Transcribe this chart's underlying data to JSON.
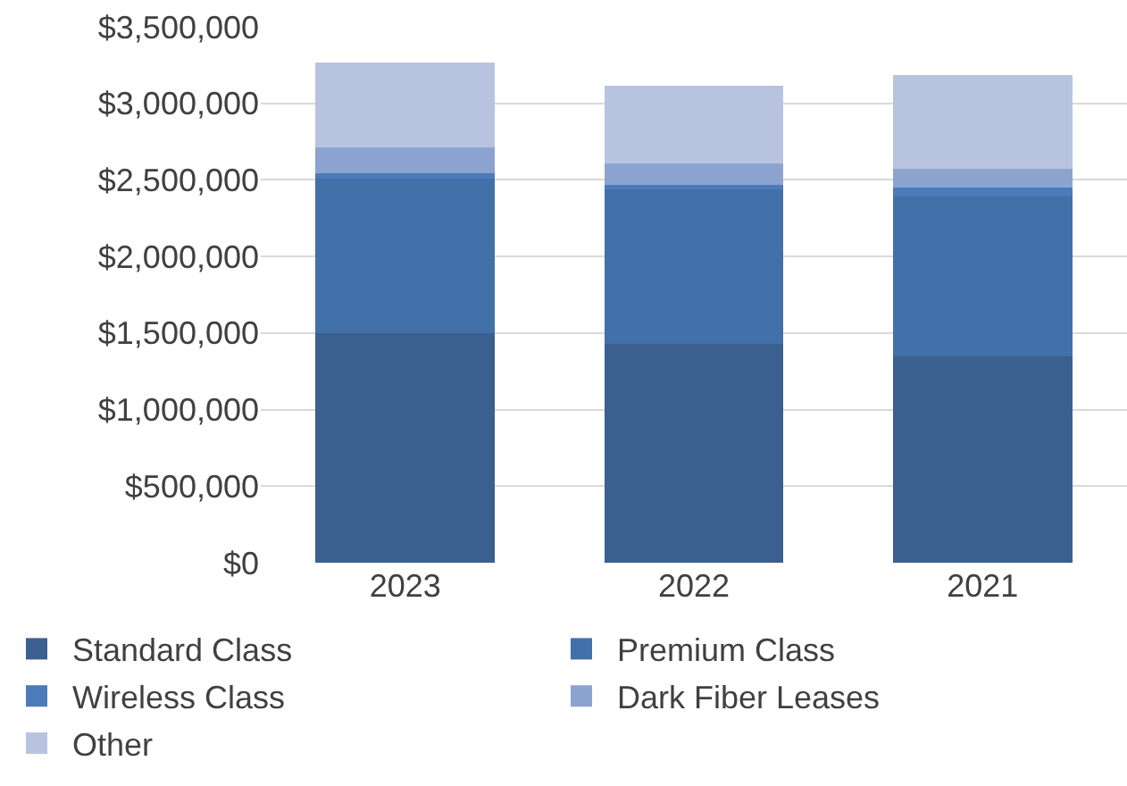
{
  "chart_data": {
    "type": "bar",
    "stacked": true,
    "categories": [
      "2023",
      "2022",
      "2021"
    ],
    "series": [
      {
        "name": "Standard Class",
        "color": "#3b5f8f",
        "values": [
          1500000,
          1430000,
          1350000
        ]
      },
      {
        "name": "Premium Class",
        "color": "#4270a8",
        "values": [
          1010000,
          1010000,
          1040000
        ]
      },
      {
        "name": "Wireless Class",
        "color": "#4a7bba",
        "values": [
          35000,
          30000,
          60000
        ]
      },
      {
        "name": "Dark Fiber Leases",
        "color": "#8da3cf",
        "values": [
          170000,
          135000,
          125000
        ]
      },
      {
        "name": "Other",
        "color": "#b8c4df",
        "values": [
          550000,
          510000,
          610000
        ]
      }
    ],
    "ylim": [
      0,
      3500000
    ],
    "yticks": [
      {
        "value": 0,
        "label": "$0"
      },
      {
        "value": 500000,
        "label": "$500,000"
      },
      {
        "value": 1000000,
        "label": "$1,000,000"
      },
      {
        "value": 1500000,
        "label": "$1,500,000"
      },
      {
        "value": 2000000,
        "label": "$2,000,000"
      },
      {
        "value": 2500000,
        "label": "$2,500,000"
      },
      {
        "value": 3000000,
        "label": "$3,000,000"
      },
      {
        "value": 3500000,
        "label": "$3,500,000"
      }
    ],
    "grid": "y",
    "legend": "bottom"
  }
}
